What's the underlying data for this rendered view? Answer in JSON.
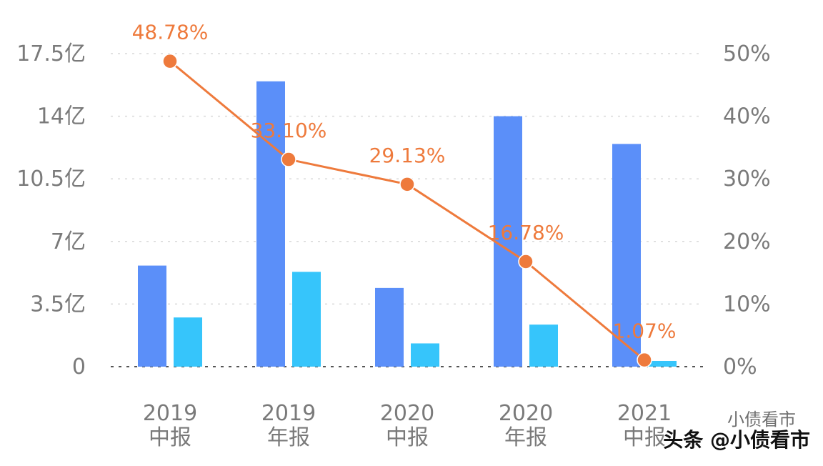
{
  "chart_data": {
    "type": "bar+line",
    "categories": [
      [
        "2019",
        "中报"
      ],
      [
        "2019",
        "年报"
      ],
      [
        "2020",
        "中报"
      ],
      [
        "2020",
        "年报"
      ],
      [
        "2021",
        "中报"
      ]
    ],
    "series": [
      {
        "name": "series-1",
        "axis": "left",
        "type": "bar",
        "color": "#5b8ff9",
        "values": [
          5.65,
          15.95,
          4.4,
          14.0,
          12.45
        ]
      },
      {
        "name": "series-2",
        "axis": "left",
        "type": "bar",
        "color": "#36c5fb",
        "values": [
          2.75,
          5.3,
          1.3,
          2.35,
          0.32
        ]
      },
      {
        "name": "rate",
        "axis": "right",
        "type": "line",
        "color": "#ee7a3c",
        "values": [
          48.78,
          33.1,
          29.13,
          16.78,
          1.07
        ],
        "labels": [
          "48.78%",
          "33.10%",
          "29.13%",
          "16.78%",
          "1.07%"
        ]
      }
    ],
    "y_left": {
      "min": 0,
      "max": 17.5,
      "ticks": [
        0,
        3.5,
        7,
        10.5,
        14,
        17.5
      ],
      "tick_labels": [
        "0",
        "3.5亿",
        "7亿",
        "10.5亿",
        "14亿",
        "17.5亿"
      ]
    },
    "y_right": {
      "min": 0,
      "max": 50,
      "ticks": [
        0,
        10,
        20,
        30,
        40,
        50
      ],
      "tick_labels": [
        "0%",
        "10%",
        "20%",
        "30%",
        "40%",
        "50%"
      ]
    },
    "grid": true,
    "legend": "none"
  },
  "watermark": {
    "text": "头条 @小债看市",
    "echo": "小债看市"
  }
}
